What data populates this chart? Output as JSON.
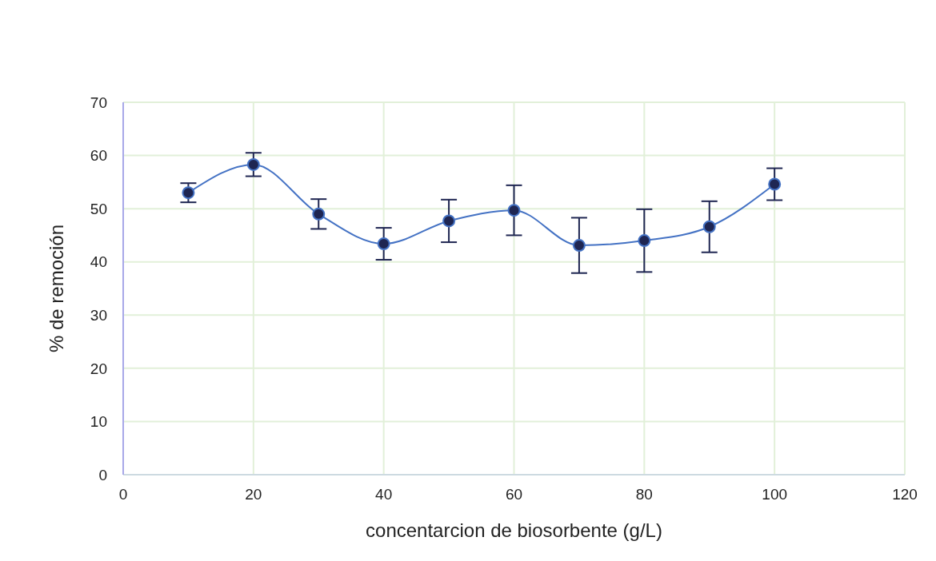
{
  "chart_data": {
    "type": "line",
    "xlabel": "concentarcion de biosorbente (g/L)",
    "ylabel": "% de remoción",
    "x": [
      10,
      20,
      30,
      40,
      50,
      60,
      70,
      80,
      90,
      100
    ],
    "series": [
      {
        "color": "#4472c4",
        "values": [
          53.0,
          58.3,
          49.0,
          43.4,
          47.7,
          49.7,
          43.1,
          44.0,
          46.6,
          54.6
        ],
        "errors": [
          1.8,
          2.2,
          2.8,
          3.0,
          4.0,
          4.7,
          5.2,
          5.9,
          4.8,
          3.0
        ]
      }
    ],
    "xlim": [
      0,
      120
    ],
    "xticks": [
      0,
      20,
      40,
      60,
      80,
      100,
      120
    ],
    "ylim": [
      0,
      70
    ],
    "yticks": [
      0,
      10,
      20,
      30,
      40,
      50,
      60,
      70
    ],
    "grid": true,
    "legend": false,
    "marker": "circle",
    "line_style": "solid"
  }
}
